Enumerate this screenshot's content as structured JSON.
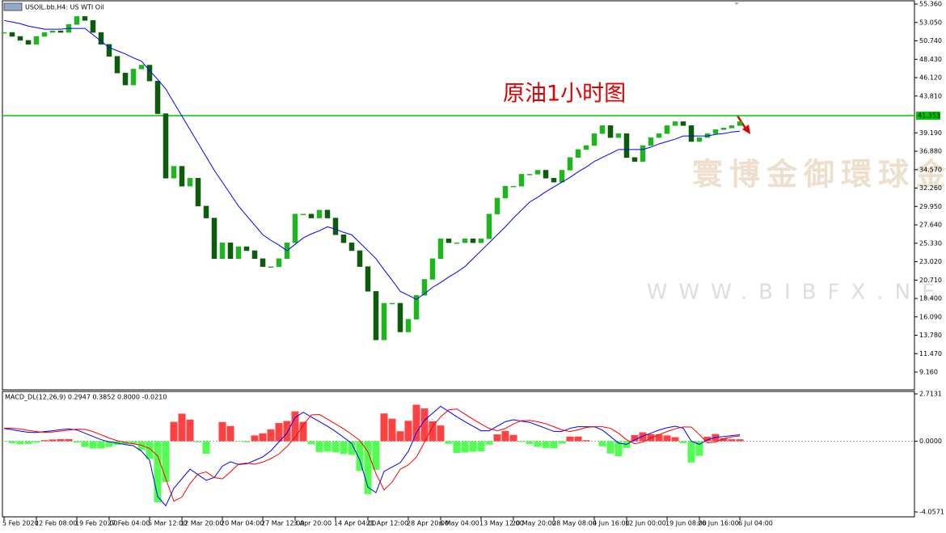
{
  "chart_data": [
    {
      "type": "candlestick",
      "title": "USOIL.bb,H4: US WTI Oil",
      "annotation": "原油1小时图",
      "watermark": [
        "寰博金御環球金融",
        "WWW.BIBFX.NET"
      ],
      "categories": [
        "5 Feb 2020",
        null,
        null,
        null,
        "12 Feb 08:00",
        null,
        null,
        null,
        null,
        "19 Feb 20:00",
        null,
        null,
        null,
        "27 Feb 04:00",
        null,
        null,
        null,
        null,
        "5 Mar 12:00",
        null,
        null,
        null,
        "12 Mar 20:00",
        null,
        null,
        null,
        null,
        "20 Mar 04:00",
        null,
        null,
        null,
        null,
        "27 Mar 12:00",
        null,
        null,
        null,
        "3 Apr 20:00",
        null,
        null,
        null,
        null,
        "14 Apr 04:00",
        null,
        null,
        null,
        "21 Apr 12:00",
        null,
        null,
        null,
        null,
        "28 Apr 20:00",
        null,
        null,
        null,
        "6 May 04:00",
        null,
        null,
        null,
        null,
        "13 May 12:00",
        null,
        null,
        null,
        "20 May 20:00",
        null,
        null,
        null,
        null,
        "28 May 08:00",
        null,
        null,
        null,
        null,
        "4 Jun 16:00",
        null,
        null,
        null,
        "12 Jun 00:00",
        null,
        null,
        null,
        null,
        "19 Jun 08:00",
        null,
        null,
        null,
        "26 Jun 16:00",
        null,
        null,
        null,
        null,
        "6 Jul 04:00"
      ],
      "close": [
        51.8,
        51.3,
        50.8,
        50.3,
        51.3,
        51.8,
        52.0,
        51.8,
        52.8,
        53.8,
        53.3,
        51.8,
        50.3,
        48.8,
        46.7,
        45.2,
        47.2,
        47.7,
        45.7,
        41.6,
        33.5,
        35.0,
        32.5,
        33.5,
        30.0,
        28.5,
        23.4,
        25.4,
        23.4,
        24.9,
        24.4,
        23.4,
        22.4,
        22.4,
        23.4,
        25.4,
        29.0,
        29.0,
        28.5,
        29.5,
        28.5,
        26.4,
        25.4,
        24.4,
        22.4,
        19.3,
        13.2,
        17.8,
        17.8,
        14.2,
        15.8,
        18.8,
        20.8,
        23.4,
        25.9,
        25.4,
        25.4,
        25.9,
        25.4,
        25.9,
        29.0,
        31.0,
        32.5,
        32.5,
        34.0,
        34.0,
        34.5,
        33.5,
        33.0,
        34.5,
        36.1,
        37.1,
        37.6,
        39.1,
        40.1,
        38.6,
        39.1,
        36.1,
        35.6,
        37.6,
        38.6,
        39.1,
        40.1,
        40.6,
        40.1,
        38.1,
        38.6,
        39.1,
        39.6,
        39.8,
        40.1,
        40.6
      ],
      "up_color": "#1fb51f",
      "down_color": "#0b5d0b",
      "ma": {
        "color": "#0000ff",
        "values": [
          53.3,
          53.1,
          52.9,
          52.6,
          52.4,
          52.2,
          52.2,
          52.2,
          52.3,
          52.3,
          52.3,
          51.5,
          50.7,
          49.9,
          49.5,
          49.1,
          48.6,
          48.2,
          47.0,
          45.9,
          44.7,
          43.0,
          41.3,
          39.6,
          37.9,
          36.2,
          34.5,
          33.0,
          31.5,
          30.0,
          28.8,
          27.6,
          26.4,
          25.7,
          25.1,
          24.4,
          25.2,
          26.0,
          26.5,
          26.9,
          27.4,
          27.1,
          26.7,
          26.4,
          25.4,
          24.4,
          23.4,
          22.0,
          20.7,
          19.3,
          18.8,
          18.3,
          19.0,
          19.8,
          20.4,
          21.1,
          21.7,
          22.4,
          23.4,
          24.4,
          25.4,
          26.4,
          27.4,
          28.5,
          29.5,
          30.5,
          31.1,
          31.8,
          32.4,
          33.0,
          33.6,
          34.3,
          34.9,
          35.6,
          36.1,
          36.6,
          37.1,
          37.1,
          37.1,
          37.1,
          37.4,
          37.8,
          38.1,
          38.4,
          38.8,
          38.8,
          38.8,
          38.8,
          39.0,
          39.1,
          39.3,
          39.4
        ]
      },
      "levels": [
        {
          "value": 41.353,
          "label": "41.353",
          "color": "#00c800"
        }
      ],
      "ylim": [
        6.93,
        55.87
      ],
      "yticks": [
        {
          "value": 55.36,
          "label": "55.360"
        },
        {
          "value": 53.05,
          "label": "53.050"
        },
        {
          "value": 50.74,
          "label": "50.740"
        },
        {
          "value": 48.43,
          "label": "48.430"
        },
        {
          "value": 46.12,
          "label": "46.120"
        },
        {
          "value": 43.81,
          "label": "43.810"
        },
        {
          "value": 39.19,
          "label": "39.190"
        },
        {
          "value": 36.88,
          "label": "36.880"
        },
        {
          "value": 34.57,
          "label": "34.570"
        },
        {
          "value": 32.26,
          "label": "32.260"
        },
        {
          "value": 29.95,
          "label": "29.950"
        },
        {
          "value": 27.64,
          "label": "27.640"
        },
        {
          "value": 25.33,
          "label": "25.330"
        },
        {
          "value": 23.02,
          "label": "23.020"
        },
        {
          "value": 20.71,
          "label": "20.710"
        },
        {
          "value": 18.4,
          "label": "18.400"
        },
        {
          "value": 16.09,
          "label": "16.090"
        },
        {
          "value": 13.78,
          "label": "13.780"
        },
        {
          "value": 11.47,
          "label": "11.470"
        },
        {
          "value": 9.16,
          "label": "9.160"
        }
      ]
    },
    {
      "type": "macd",
      "title": "MACD_DL(12,26,9) 0.2947 0.3852 0.8000 -0.0210",
      "histogram": {
        "pos_color": "#ff2020",
        "neg_color": "#33ff33",
        "values": [
          -0.03,
          -0.12,
          -0.18,
          -0.16,
          -0.08,
          0.06,
          0.1,
          0.12,
          0.12,
          -0.08,
          -0.33,
          -0.42,
          -0.42,
          -0.33,
          -0.21,
          -0.17,
          -0.17,
          -0.51,
          -1.02,
          -3.5,
          -2.34,
          1.11,
          1.58,
          1.24,
          -0.06,
          -0.72,
          0.0,
          1.1,
          0.87,
          -0.03,
          -0.06,
          0.33,
          0.45,
          0.68,
          1.04,
          1.16,
          1.71,
          1.11,
          -0.18,
          -0.62,
          -0.6,
          -0.64,
          -0.74,
          -0.78,
          -1.7,
          -3.03,
          -1.64,
          1.59,
          1.29,
          0.57,
          1.17,
          2.09,
          1.88,
          1.14,
          0.9,
          -0.15,
          -0.68,
          -0.65,
          -0.6,
          -0.59,
          -0.2,
          0.39,
          0.59,
          0.36,
          -0.05,
          -0.17,
          -0.32,
          -0.39,
          -0.41,
          -0.14,
          0.27,
          0.27,
          0.06,
          0.0,
          -0.29,
          -0.71,
          -0.86,
          -0.39,
          0.35,
          0.51,
          0.41,
          0.39,
          0.33,
          0.23,
          -0.11,
          -1.22,
          -0.84,
          0.26,
          0.41,
          0.18,
          0.11,
          0.11
        ]
      },
      "macd": {
        "color": "#0000ff",
        "values": [
          0.73,
          0.66,
          0.58,
          0.51,
          0.5,
          0.55,
          0.6,
          0.66,
          0.71,
          0.64,
          0.46,
          0.27,
          0.09,
          -0.04,
          -0.11,
          -0.19,
          -0.26,
          -0.57,
          -1.1,
          -3.17,
          -3.7,
          -2.7,
          -2.15,
          -1.6,
          -1.92,
          -2.24,
          -2.08,
          -1.43,
          -1.18,
          -1.33,
          -1.3,
          -1.1,
          -0.9,
          -0.55,
          -0.04,
          0.47,
          1.36,
          1.66,
          1.39,
          1.12,
          0.86,
          0.56,
          0.22,
          -0.13,
          -1.08,
          -2.63,
          -2.95,
          -1.73,
          -1.48,
          -1.23,
          -0.58,
          0.48,
          1.2,
          1.6,
          2.0,
          1.7,
          1.4,
          1.12,
          0.86,
          0.6,
          0.6,
          0.86,
          1.12,
          1.23,
          1.15,
          1.08,
          0.91,
          0.74,
          0.56,
          0.56,
          0.74,
          0.83,
          0.83,
          0.83,
          0.64,
          0.27,
          -0.11,
          -0.18,
          0.08,
          0.29,
          0.46,
          0.64,
          0.77,
          0.86,
          0.75,
          0.0,
          -0.18,
          0.08,
          0.22,
          0.27,
          0.32,
          0.37
        ]
      },
      "signal": {
        "color": "#ff0000",
        "values": [
          0.75,
          0.74,
          0.7,
          0.62,
          0.55,
          0.51,
          0.53,
          0.58,
          0.63,
          0.69,
          0.68,
          0.55,
          0.37,
          0.18,
          0.03,
          -0.08,
          -0.15,
          -0.23,
          -0.42,
          -0.84,
          -2.14,
          -3.44,
          -3.2,
          -2.43,
          -1.88,
          -1.76,
          -2.08,
          -2.16,
          -1.76,
          -1.31,
          -1.26,
          -1.32,
          -1.2,
          -1.0,
          -0.73,
          -0.3,
          0.22,
          0.92,
          1.51,
          1.53,
          1.26,
          0.99,
          0.71,
          0.39,
          0.05,
          -0.61,
          -1.86,
          -2.79,
          -2.34,
          -1.61,
          -1.36,
          -0.91,
          -0.05,
          0.84,
          1.4,
          1.8,
          1.85,
          1.55,
          1.26,
          0.99,
          0.73,
          0.6,
          0.73,
          0.99,
          1.18,
          1.19,
          1.12,
          1.0,
          0.83,
          0.65,
          0.56,
          0.65,
          0.79,
          0.83,
          0.83,
          0.74,
          0.46,
          0.08,
          -0.15,
          -0.05,
          0.19,
          0.38,
          0.55,
          0.71,
          0.82,
          0.81,
          0.38,
          -0.09,
          -0.05,
          0.15,
          0.25,
          0.3
        ]
      },
      "ylim": [
        -4.0571,
        2.7131
      ],
      "yticks": [
        {
          "value": 2.7131,
          "label": "2.7131"
        },
        {
          "value": 0,
          "label": "0.0000"
        },
        {
          "value": -4.0571,
          "label": "-4.0571"
        }
      ]
    }
  ]
}
